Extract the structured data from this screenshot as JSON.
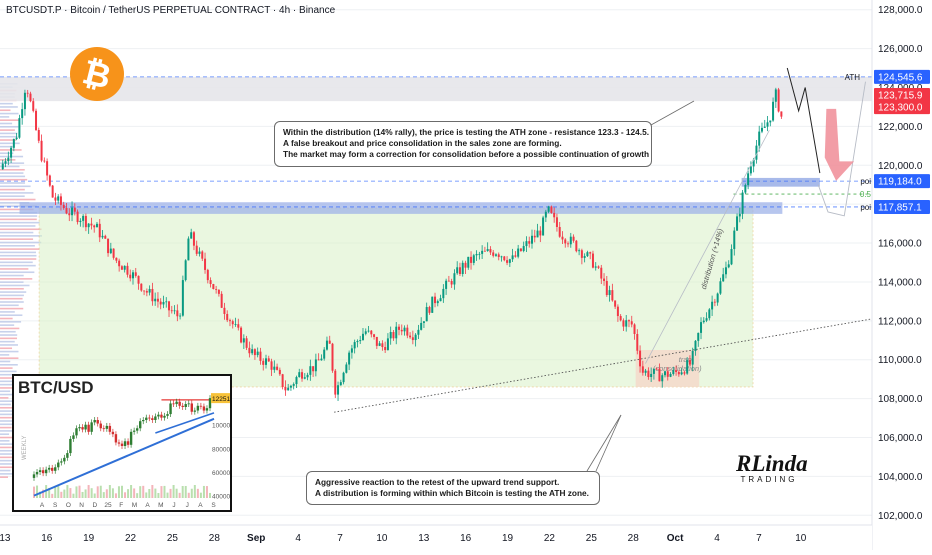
{
  "header": {
    "title": "BTCUSDT.P · Bitcoin / TetherUS PERPETUAL CONTRACT · 4h · Binance"
  },
  "colors": {
    "up": "#089981",
    "down": "#f23645",
    "ath_label": "#2962ff",
    "resistance_label": "#f23645",
    "poi_label": "#2962ff",
    "zone_green": "#d9f2c7",
    "trap_zone": "#f5d5c8",
    "bitcoin": "#f7931a"
  },
  "logo": {
    "icon": "bitcoin-icon"
  },
  "chart_data": {
    "type": "candlestick",
    "timeframe": "4h",
    "y_axis": {
      "range": [
        101500,
        128500
      ],
      "ticks": [
        102000,
        104000,
        106000,
        108000,
        110000,
        112000,
        114000,
        116000,
        118000,
        120000,
        122000,
        124000,
        126000,
        128000
      ],
      "tick_labels": [
        "102,000.0",
        "104,000.0",
        "106,000.0",
        "108,000.0",
        "110,000.0",
        "112,000.0",
        "114,000.0",
        "116,000.0",
        "118,000.0",
        "120,000.0",
        "122,000.0",
        "124,000.0",
        "126,000.0",
        "128,000.0"
      ]
    },
    "x_axis": {
      "tick_labels": [
        "13",
        "16",
        "19",
        "22",
        "25",
        "28",
        "Sep",
        "4",
        "7",
        "10",
        "13",
        "16",
        "19",
        "22",
        "25",
        "28",
        "Oct",
        "4",
        "7",
        "10"
      ]
    },
    "price_path": [
      {
        "t": 0,
        "p": 119800
      },
      {
        "t": 1,
        "p": 121500
      },
      {
        "t": 1.6,
        "p": 124300
      },
      {
        "t": 2.4,
        "p": 121000
      },
      {
        "t": 3.2,
        "p": 118400
      },
      {
        "t": 4.2,
        "p": 117600
      },
      {
        "t": 5,
        "p": 117300
      },
      {
        "t": 6,
        "p": 116700
      },
      {
        "t": 7,
        "p": 115200
      },
      {
        "t": 8,
        "p": 114500
      },
      {
        "t": 9,
        "p": 113500
      },
      {
        "t": 10,
        "p": 112800
      },
      {
        "t": 11,
        "p": 112200
      },
      {
        "t": 11.6,
        "p": 116500
      },
      {
        "t": 12.4,
        "p": 115000
      },
      {
        "t": 13.5,
        "p": 113000
      },
      {
        "t": 14.5,
        "p": 111500
      },
      {
        "t": 15.6,
        "p": 110200
      },
      {
        "t": 16.6,
        "p": 109800
      },
      {
        "t": 17.6,
        "p": 108400
      },
      {
        "t": 18.4,
        "p": 109300
      },
      {
        "t": 19.4,
        "p": 109700
      },
      {
        "t": 20.2,
        "p": 110900
      },
      {
        "t": 20.6,
        "p": 108300
      },
      {
        "t": 21.4,
        "p": 110400
      },
      {
        "t": 22.4,
        "p": 111500
      },
      {
        "t": 23.4,
        "p": 110600
      },
      {
        "t": 24.6,
        "p": 111700
      },
      {
        "t": 25.4,
        "p": 111300
      },
      {
        "t": 26.4,
        "p": 112800
      },
      {
        "t": 27.4,
        "p": 113800
      },
      {
        "t": 28.4,
        "p": 114800
      },
      {
        "t": 29.4,
        "p": 115400
      },
      {
        "t": 30.4,
        "p": 115600
      },
      {
        "t": 31.4,
        "p": 115100
      },
      {
        "t": 32.4,
        "p": 116000
      },
      {
        "t": 33.2,
        "p": 116700
      },
      {
        "t": 33.6,
        "p": 117700
      },
      {
        "t": 34.4,
        "p": 116500
      },
      {
        "t": 35.4,
        "p": 115800
      },
      {
        "t": 36.4,
        "p": 115000
      },
      {
        "t": 37.4,
        "p": 113300
      },
      {
        "t": 38,
        "p": 112000
      },
      {
        "t": 38.8,
        "p": 111800
      },
      {
        "t": 39.4,
        "p": 109400
      },
      {
        "t": 40.4,
        "p": 109200
      },
      {
        "t": 41.4,
        "p": 109300
      },
      {
        "t": 42.4,
        "p": 109800
      },
      {
        "t": 43,
        "p": 111800
      },
      {
        "t": 44,
        "p": 113500
      },
      {
        "t": 44.6,
        "p": 114800
      },
      {
        "t": 45.4,
        "p": 117800
      },
      {
        "t": 46,
        "p": 120000
      },
      {
        "t": 46.6,
        "p": 121500
      },
      {
        "t": 47.2,
        "p": 122400
      },
      {
        "t": 47.6,
        "p": 123600
      },
      {
        "t": 48,
        "p": 122300
      }
    ],
    "time_range": [
      0,
      53.5
    ],
    "levels": [
      {
        "name": "ATH",
        "value": 124545.6,
        "label": "124,545.6",
        "color": "#2962ff"
      },
      {
        "name": "resistance_high",
        "value": 123715.9,
        "label": "123,715.9",
        "color": "#f23645"
      },
      {
        "name": "resistance_low",
        "value": 123300.0,
        "label": "123,300.0",
        "color": "#f23645"
      },
      {
        "name": "poi",
        "value": 119184.0,
        "label": "119,184.0",
        "color": "#2962ff"
      },
      {
        "name": "poi",
        "value": 117857.1,
        "label": "117,857.1",
        "color": "#2962ff"
      }
    ],
    "level_tags": {
      "ath": "ATH",
      "poi": "poi",
      "half": "0.5"
    },
    "zones": {
      "sales_zone": [
        123300,
        124545.6
      ],
      "range_box": {
        "t": [
          2.4,
          46.2
        ],
        "p": [
          108600,
          117800
        ]
      },
      "poi_box_1": {
        "t": [
          1.2,
          48
        ],
        "p": [
          117500,
          118100
        ]
      },
      "poi_box_2": {
        "t": [
          45.5,
          50.3
        ],
        "p": [
          118900,
          119350
        ]
      },
      "trap_box": {
        "t": [
          39,
          42.9
        ],
        "p": [
          108600,
          110500
        ],
        "label": "trap",
        "sublabel": "(consolidation)"
      }
    },
    "trendline": {
      "start": {
        "t": 20.5,
        "p": 107300
      },
      "end": {
        "t": 53.5,
        "p": 112100
      }
    },
    "annotations": {
      "distribution": "distribution (+14%)"
    },
    "callout_1": {
      "lines": [
        "Within the distribution (14% rally), the price is testing the ATH zone - resistance 123.3 - 124.5.",
        "A false breakout and price consolidation in the sales zone are forming.",
        "The market may form a correction for consolidation before a possible continuation of growth"
      ]
    },
    "callout_2": {
      "lines": [
        "Aggressive reaction to the retest of the upward trend support.",
        "A distribution is forming within which Bitcoin is testing the ATH zone."
      ]
    }
  },
  "inset": {
    "title": "BTC/USD",
    "price_label": "122517",
    "y_ticks": [
      "100000",
      "80000",
      "60000",
      "40000"
    ],
    "x_labels": [
      "A",
      "S",
      "O",
      "N",
      "D",
      "25",
      "F",
      "M",
      "A",
      "M",
      "J",
      "J",
      "A",
      "S"
    ],
    "side_label": "WEEKLY",
    "weekly_closes": [
      58000,
      60000,
      61500,
      59000,
      62000,
      63500,
      61000,
      64000,
      68000,
      69000,
      72000,
      76000,
      88000,
      91000,
      97000,
      98000,
      96000,
      100000,
      94000,
      102000,
      104000,
      101000,
      97000,
      96500,
      99000,
      94000,
      92000,
      85000,
      84000,
      82000,
      86000,
      83000,
      94000,
      95000,
      97000,
      103000,
      104000,
      106000,
      105500,
      104000,
      107000,
      108500,
      106000,
      107500,
      109000,
      118000,
      117500,
      119500,
      116000,
      115000,
      117500,
      118000,
      111000,
      112000,
      116000,
      115500,
      112000,
      114000,
      122517
    ]
  },
  "brand": {
    "top": "RLinda",
    "bottom": "TRADING"
  }
}
